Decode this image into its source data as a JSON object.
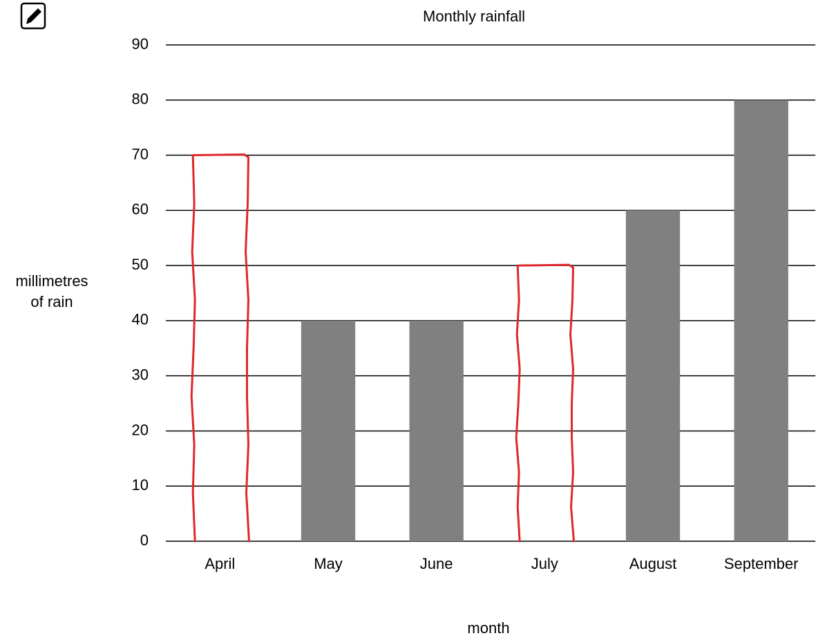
{
  "chart_data": {
    "type": "bar",
    "title": "Monthly rainfall",
    "y_label": [
      "millimetres",
      "of rain"
    ],
    "x_label": "month",
    "categories": [
      "April",
      "May",
      "June",
      "July",
      "August",
      "September"
    ],
    "values": [
      70,
      40,
      40,
      50,
      60,
      80
    ],
    "bar_colors": [
      "#e0262b",
      "#808080",
      "#808080",
      "#e0262b",
      "#808080",
      "#808080"
    ],
    "bar_style": [
      "outline",
      "fill",
      "fill",
      "outline",
      "fill",
      "fill"
    ],
    "ylim": [
      0,
      90
    ],
    "yticks": [
      0,
      10,
      20,
      30,
      40,
      50,
      60,
      70,
      80,
      90
    ],
    "grid": true
  }
}
